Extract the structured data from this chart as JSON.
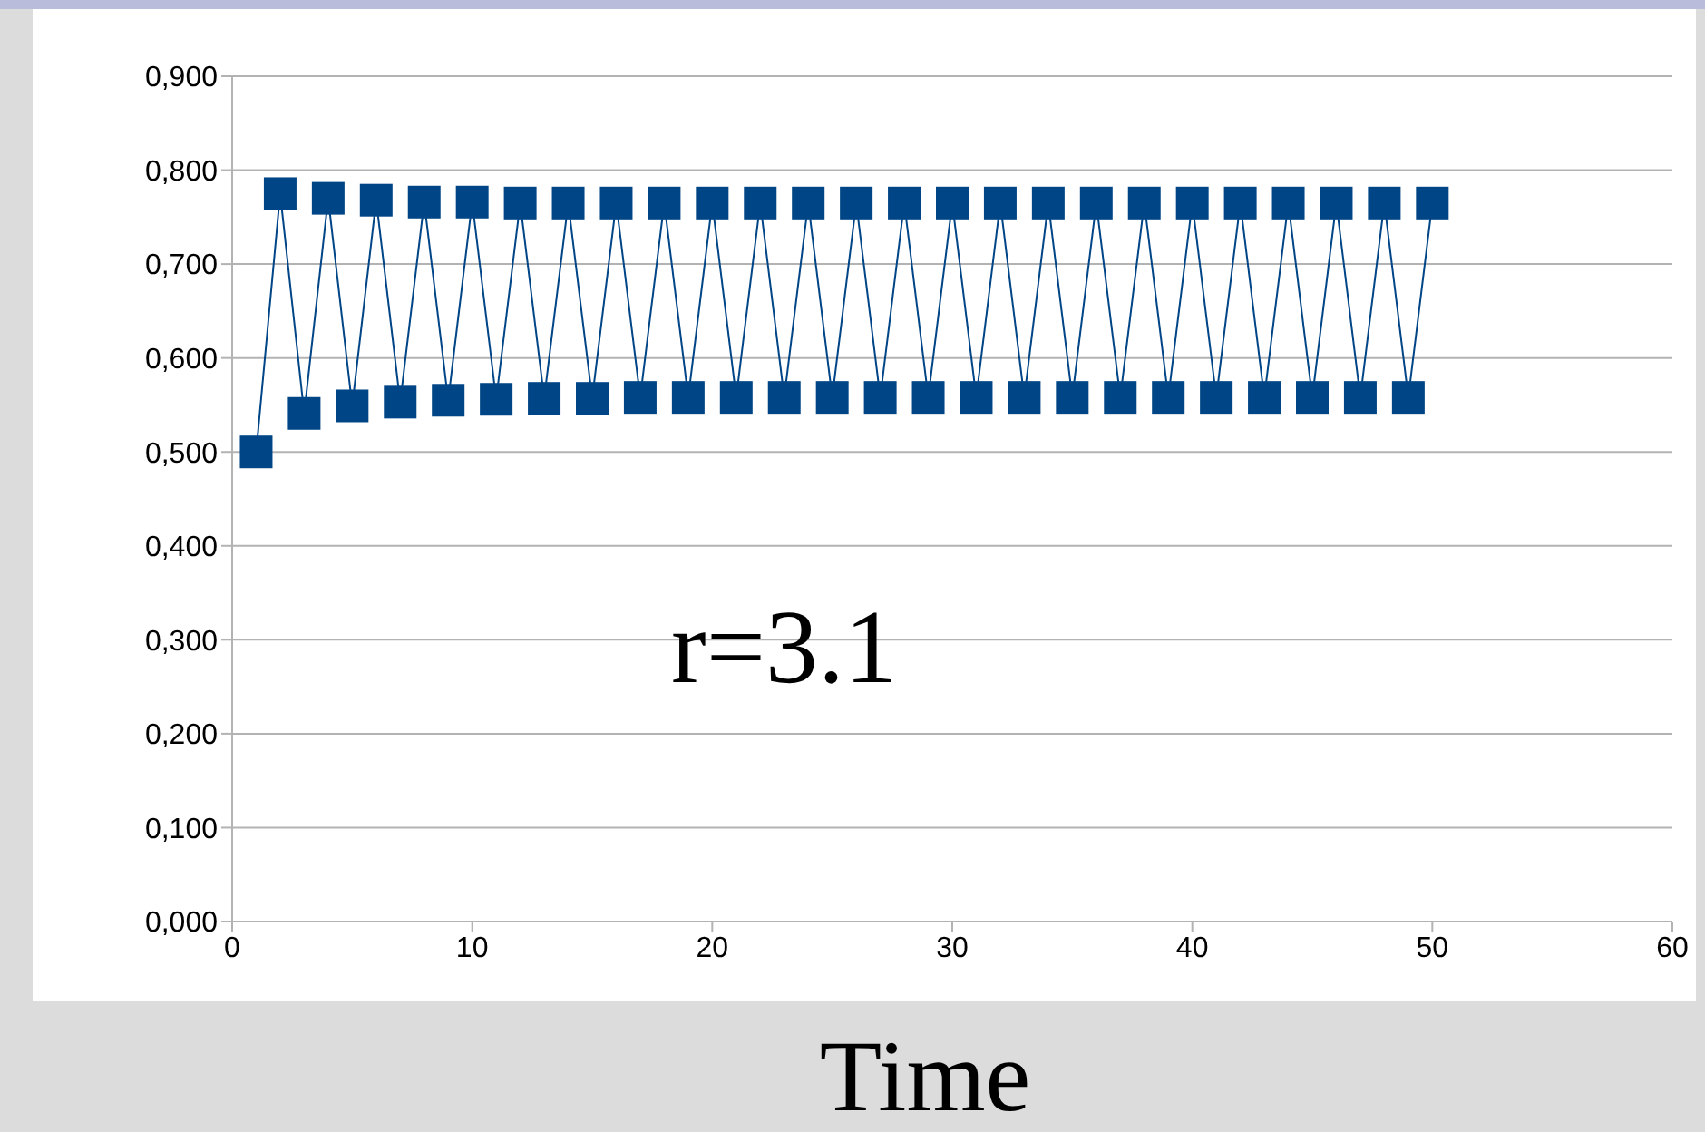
{
  "chart_data": {
    "type": "line",
    "xlabel": "Time",
    "annotations": [
      "r=3.1"
    ],
    "x": [
      1,
      2,
      3,
      4,
      5,
      6,
      7,
      8,
      9,
      10,
      11,
      12,
      13,
      14,
      15,
      16,
      17,
      18,
      19,
      20,
      21,
      22,
      23,
      24,
      25,
      26,
      27,
      28,
      29,
      30,
      31,
      32,
      33,
      34,
      35,
      36,
      37,
      38,
      39,
      40,
      41,
      42,
      43,
      44,
      45,
      46,
      47,
      48,
      49,
      50
    ],
    "series": [
      {
        "color": "#004586",
        "values": [
          0.5,
          0.775,
          0.541,
          0.77,
          0.549,
          0.768,
          0.553,
          0.766,
          0.555,
          0.766,
          0.556,
          0.765,
          0.557,
          0.765,
          0.557,
          0.765,
          0.558,
          0.765,
          0.558,
          0.765,
          0.558,
          0.765,
          0.558,
          0.765,
          0.558,
          0.765,
          0.558,
          0.765,
          0.558,
          0.765,
          0.558,
          0.765,
          0.558,
          0.765,
          0.558,
          0.765,
          0.558,
          0.765,
          0.558,
          0.765,
          0.558,
          0.765,
          0.558,
          0.765,
          0.558,
          0.765,
          0.558,
          0.765,
          0.558,
          0.765
        ]
      }
    ],
    "xlim": [
      0,
      60
    ],
    "xticks": [
      0,
      10,
      20,
      30,
      40,
      50,
      60
    ],
    "ylim": [
      0,
      0.9
    ],
    "yticks": [
      {
        "value": 0,
        "label": "0,000"
      },
      {
        "value": 0.1,
        "label": "0,100"
      },
      {
        "value": 0.2,
        "label": "0,200"
      },
      {
        "value": 0.3,
        "label": "0,300"
      },
      {
        "value": 0.4,
        "label": "0,400"
      },
      {
        "value": 0.5,
        "label": "0,500"
      },
      {
        "value": 0.6,
        "label": "0,600"
      },
      {
        "value": 0.7,
        "label": "0,700"
      },
      {
        "value": 0.8,
        "label": "0,800"
      },
      {
        "value": 0.9,
        "label": "0,900"
      }
    ],
    "grid": "y",
    "legend": false,
    "marker": "square",
    "line_style": "solid"
  }
}
